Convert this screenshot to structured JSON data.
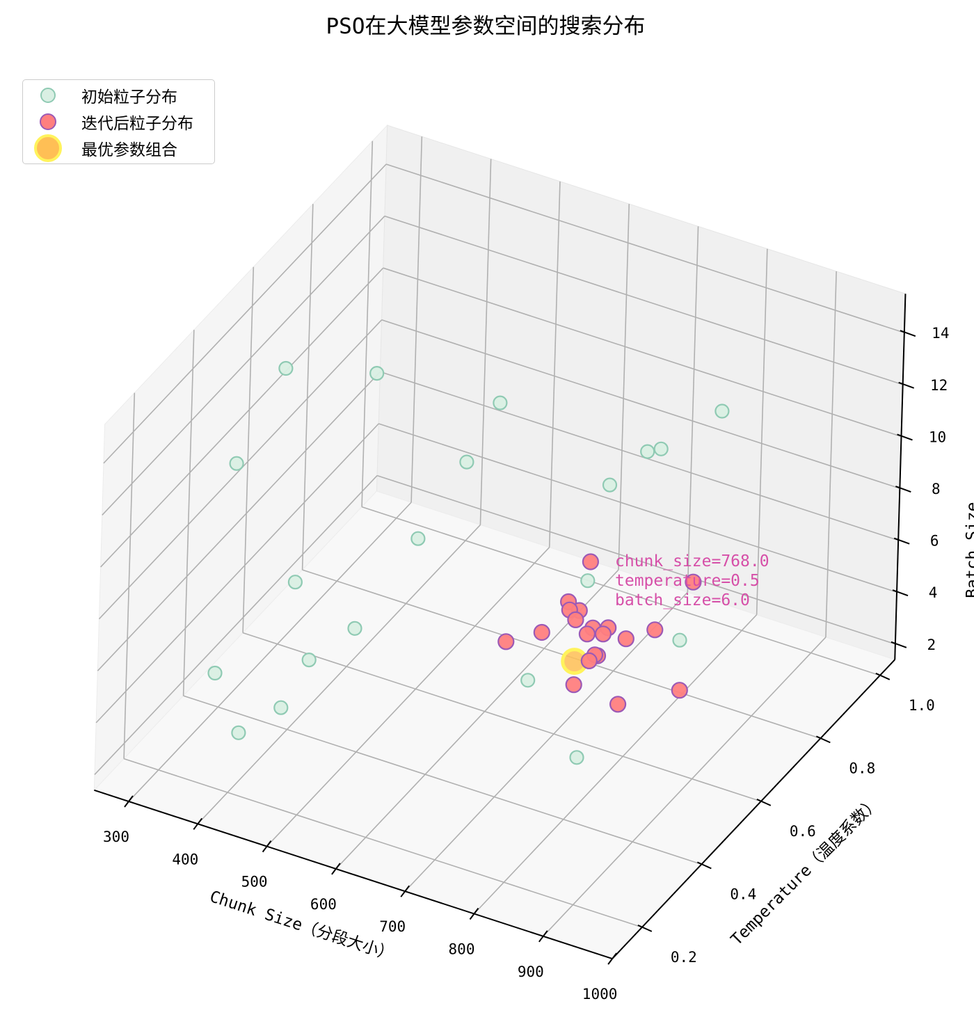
{
  "chart_data": {
    "type": "scatter",
    "projection": "3d",
    "title": "PSO在大模型参数空间的搜索分布",
    "xlabel": "Chunk Size（分段大小）",
    "ylabel": "Temperature（温度系数）",
    "zlabel": "Batch Size",
    "xticks": [
      "300",
      "400",
      "500",
      "600",
      "700",
      "800",
      "900",
      "1000"
    ],
    "yticks": [
      "0.2",
      "0.4",
      "0.6",
      "0.8",
      "1.0"
    ],
    "zticks": [
      "2",
      "4",
      "6",
      "8",
      "10",
      "12",
      "14"
    ],
    "xlim": [
      250,
      1000
    ],
    "ylim": [
      0.1,
      1.05
    ],
    "zlim": [
      1.4,
      15.5
    ],
    "grid": true,
    "legend_position": "upper left",
    "legend": [
      {
        "label": "初始粒子分布",
        "marker": "circle",
        "face": "#d9efe3",
        "edge": "#8fcab3"
      },
      {
        "label": "迭代后粒子分布",
        "marker": "circle",
        "face": "#ff7f7f",
        "edge": "#9b59b6"
      },
      {
        "label": "最优参数组合",
        "marker": "circle-large",
        "face": "#ffbf55",
        "edge": "#fff35c"
      }
    ],
    "series": [
      {
        "name": "初始粒子分布",
        "points": [
          [
            342,
            0.5,
            13.6
          ],
          [
            390,
            0.7,
            11.4
          ],
          [
            568,
            0.7,
            11.8
          ],
          [
            804,
            0.9,
            11.1
          ],
          [
            358,
            0.3,
            12.5
          ],
          [
            564,
            0.6,
            10.7
          ],
          [
            740,
            0.8,
            10.2
          ],
          [
            718,
            0.9,
            8.9
          ],
          [
            770,
            0.6,
            11.6
          ],
          [
            456,
            0.7,
            5.6
          ],
          [
            447,
            0.3,
            8.7
          ],
          [
            701,
            0.7,
            6.1
          ],
          [
            493,
            0.4,
            6.1
          ],
          [
            794,
            0.8,
            3.4
          ],
          [
            470,
            0.3,
            5.9
          ],
          [
            377,
            0.2,
            5.8
          ],
          [
            702,
            0.5,
            4.7
          ],
          [
            473,
            0.2,
            5.3
          ],
          [
            434,
            0.15,
            4.6
          ],
          [
            858,
            0.3,
            5.5
          ]
        ]
      },
      {
        "name": "迭代后粒子分布",
        "points": [
          [
            787,
            0.5,
            10.0
          ],
          [
            935,
            0.5,
            10.5
          ],
          [
            757,
            0.5,
            8.2
          ],
          [
            773,
            0.5,
            8.0
          ],
          [
            759,
            0.5,
            7.9
          ],
          [
            768,
            0.5,
            7.6
          ],
          [
            793,
            0.5,
            7.5
          ],
          [
            815,
            0.5,
            7.7
          ],
          [
            808,
            0.5,
            7.4
          ],
          [
            785,
            0.5,
            7.2
          ],
          [
            882,
            0.5,
            8.2
          ],
          [
            841,
            0.5,
            7.5
          ],
          [
            720,
            0.5,
            6.7
          ],
          [
            669,
            0.5,
            5.9
          ],
          [
            801,
            0.5,
            6.5
          ],
          [
            797,
            0.5,
            6.5
          ],
          [
            789,
            0.5,
            6.2
          ],
          [
            768,
            0.5,
            5.1
          ],
          [
            920,
            0.5,
            6.2
          ],
          [
            832,
            0.5,
            4.9
          ]
        ]
      },
      {
        "name": "最优参数组合",
        "points": [
          [
            768,
            0.5,
            6.0
          ]
        ]
      }
    ],
    "annotation": {
      "lines": [
        "chunk_size=768.0",
        "temperature=0.5",
        "batch_size=6.0"
      ],
      "color": "#d64fa8"
    }
  }
}
